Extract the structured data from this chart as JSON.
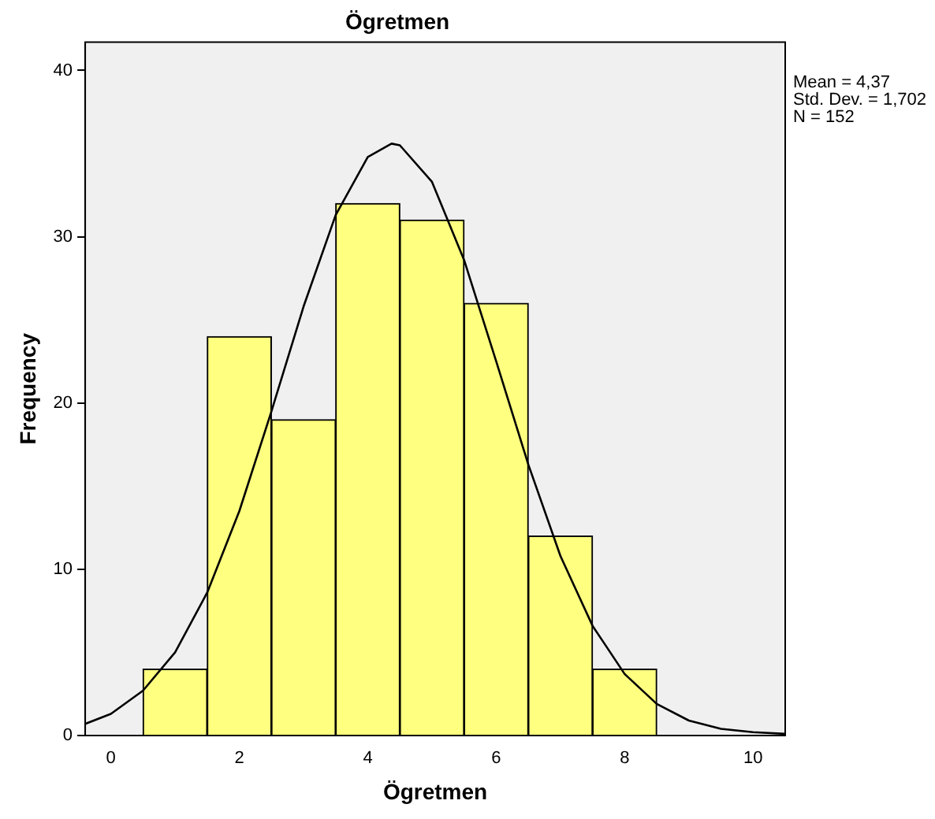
{
  "chart_data": {
    "type": "histogram",
    "title": "Ögretmen",
    "xlabel": "Ögretmen",
    "ylabel": "Frequency",
    "xlim": [
      -0.4,
      10.5
    ],
    "xticks": [
      0,
      2,
      4,
      6,
      8,
      10
    ],
    "ylim": [
      0,
      41.7
    ],
    "yticks": [
      0,
      10,
      20,
      30,
      40
    ],
    "grid": false,
    "legend": false,
    "marker": "none",
    "line_style": "solid",
    "series": [
      {
        "type": "histogram",
        "color": "#ffff80",
        "bins": [
          0.5,
          1.5,
          2.5,
          3.5,
          4.5,
          5.5,
          6.5,
          7.5,
          8.5
        ],
        "values": [
          4,
          24,
          19,
          32,
          31,
          26,
          12,
          4
        ]
      },
      {
        "type": "line",
        "color": "#000000",
        "x": [
          -0.4,
          0,
          0.5,
          1,
          1.5,
          2,
          2.5,
          3,
          3.5,
          4,
          4.37,
          4.5,
          5,
          5.5,
          6,
          6.5,
          7,
          7.5,
          8,
          8.5,
          9,
          9.5,
          10,
          10.5
        ],
        "values": [
          0.7,
          1.3,
          2.7,
          5,
          8.6,
          13.5,
          19.5,
          25.8,
          31.3,
          34.8,
          35.6,
          35.5,
          33.3,
          28.6,
          22.5,
          16.3,
          10.8,
          6.6,
          3.7,
          1.9,
          0.9,
          0.4,
          0.2,
          0.1
        ]
      }
    ],
    "annotations": [
      "Mean = 4,37",
      "Std. Dev. = 1,702",
      "N = 152"
    ]
  }
}
